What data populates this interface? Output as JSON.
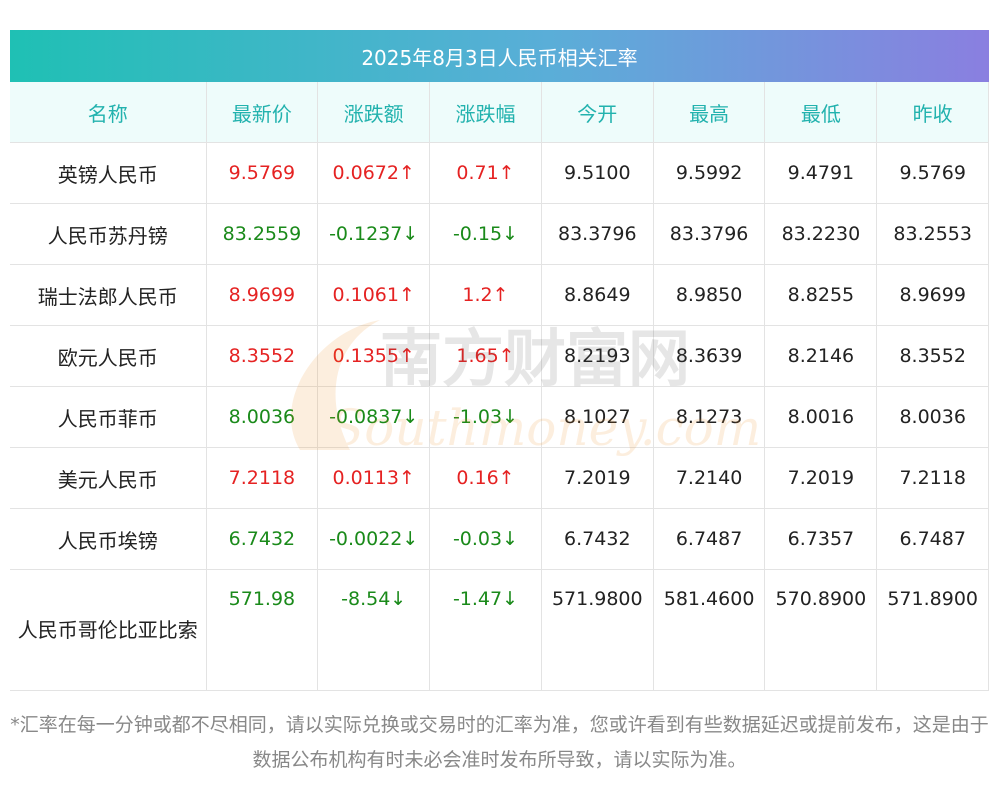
{
  "title": "2025年8月3日人民币相关汇率",
  "headers": [
    "名称",
    "最新价",
    "涨跌额",
    "涨跌幅",
    "今开",
    "最高",
    "最低",
    "昨收"
  ],
  "rows": [
    {
      "name": "英镑人民币",
      "latest": "9.5769",
      "change": "0.0672↑",
      "pct": "0.71↑",
      "open": "9.5100",
      "high": "9.5992",
      "low": "9.4791",
      "prev": "9.5769",
      "dir": "up"
    },
    {
      "name": "人民币苏丹镑",
      "latest": "83.2559",
      "change": "-0.1237↓",
      "pct": "-0.15↓",
      "open": "83.3796",
      "high": "83.3796",
      "low": "83.2230",
      "prev": "83.2553",
      "dir": "down"
    },
    {
      "name": "瑞士法郎人民币",
      "latest": "8.9699",
      "change": "0.1061↑",
      "pct": "1.2↑",
      "open": "8.8649",
      "high": "8.9850",
      "low": "8.8255",
      "prev": "8.9699",
      "dir": "up"
    },
    {
      "name": "欧元人民币",
      "latest": "8.3552",
      "change": "0.1355↑",
      "pct": "1.65↑",
      "open": "8.2193",
      "high": "8.3639",
      "low": "8.2146",
      "prev": "8.3552",
      "dir": "up"
    },
    {
      "name": "人民币菲币",
      "latest": "8.0036",
      "change": "-0.0837↓",
      "pct": "-1.03↓",
      "open": "8.1027",
      "high": "8.1273",
      "low": "8.0016",
      "prev": "8.0036",
      "dir": "down"
    },
    {
      "name": "美元人民币",
      "latest": "7.2118",
      "change": "0.0113↑",
      "pct": "0.16↑",
      "open": "7.2019",
      "high": "7.2140",
      "low": "7.2019",
      "prev": "7.2118",
      "dir": "up"
    },
    {
      "name": "人民币埃镑",
      "latest": "6.7432",
      "change": "-0.0022↓",
      "pct": "-0.03↓",
      "open": "6.7432",
      "high": "6.7487",
      "low": "6.7357",
      "prev": "6.7487",
      "dir": "down"
    },
    {
      "name": "人民币哥伦比亚比索",
      "latest": "571.98",
      "change": "-8.54↓",
      "pct": "-1.47↓",
      "open": "571.9800",
      "high": "581.4600",
      "low": "570.8900",
      "prev": "571.8900",
      "dir": "down"
    }
  ],
  "watermark": {
    "cn": "南方财富网",
    "en": "Southmoney.com"
  },
  "footer": "*汇率在每一分钟或都不尽相同，请以实际兑换或交易时的汇率为准，您或许看到有些数据延迟或提前发布，这是由于数据公布机构有时未必会准时发布所导致，请以实际为准。",
  "colors": {
    "up": "#e52222",
    "down": "#1a8a1a",
    "header_text": "#22b2ae",
    "header_bg": "#eefcfb"
  }
}
